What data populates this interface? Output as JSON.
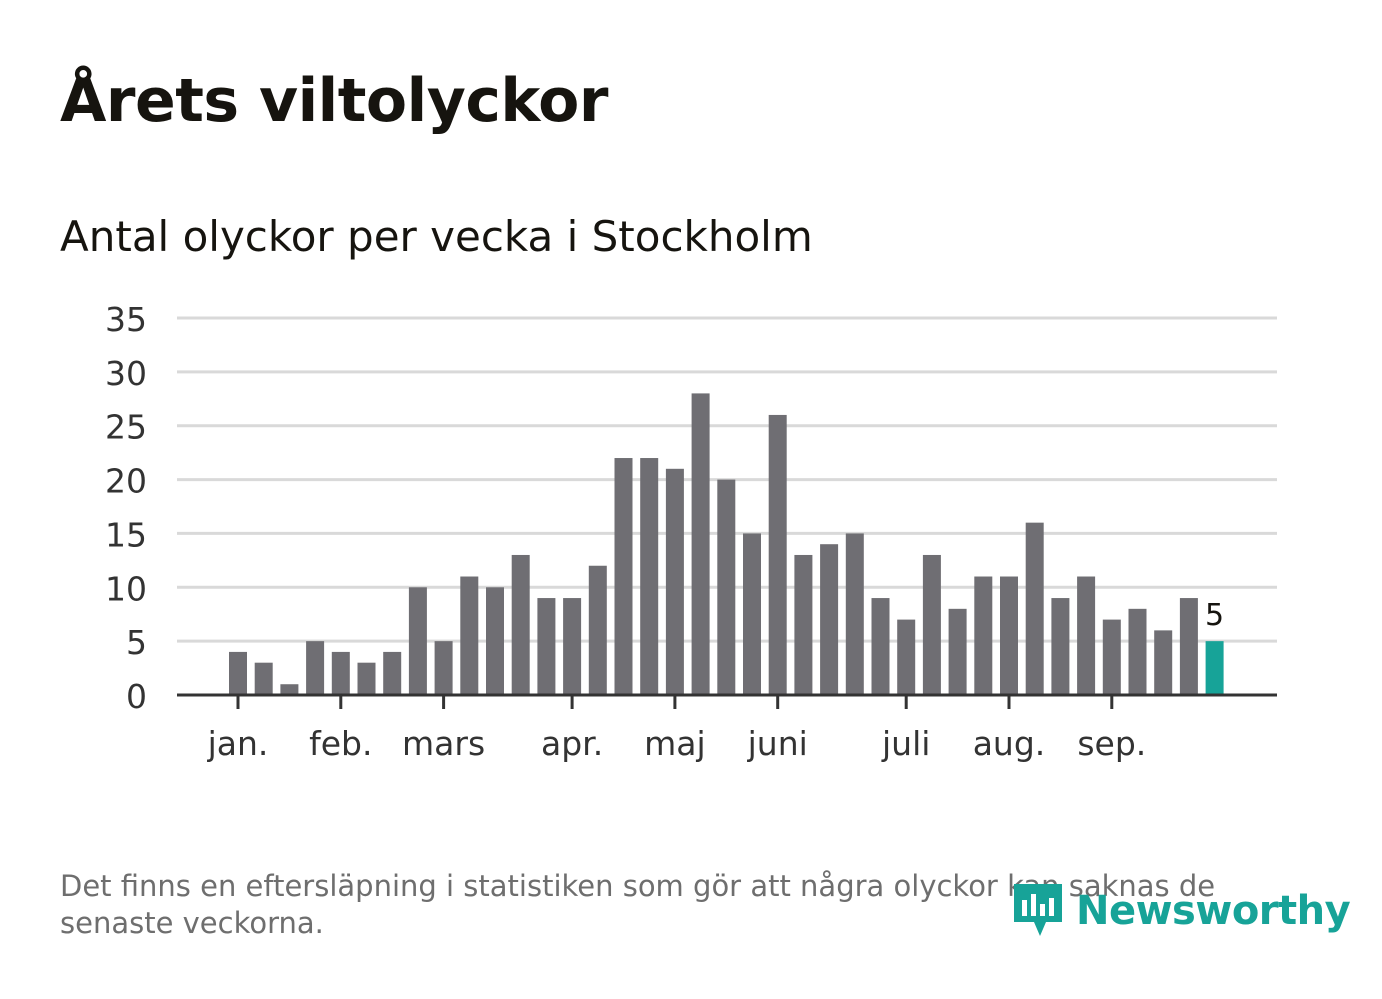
{
  "header": {
    "title": "Årets viltolyckor",
    "subtitle": "Antal olyckor per vecka i Stockholm"
  },
  "footer": {
    "note": "Det finns en eftersläpning i statistiken som gör att några olyckor kan saknas de senaste veckorna.",
    "brand": "Newsworthy",
    "brand_icon": "newsworthy-logo-icon"
  },
  "colors": {
    "bar": "#6f6e73",
    "highlight": "#17a398",
    "grid": "#d9d9d9",
    "axis": "#333333",
    "text": "#333333"
  },
  "chart_data": {
    "type": "bar",
    "title": "Antal olyckor per vecka i Stockholm",
    "xlabel": "",
    "ylabel": "",
    "ylim": [
      0,
      35
    ],
    "yticks": [
      0,
      5,
      10,
      15,
      20,
      25,
      30,
      35
    ],
    "grid": true,
    "values": [
      4,
      3,
      1,
      5,
      4,
      3,
      4,
      10,
      5,
      11,
      10,
      13,
      9,
      9,
      12,
      22,
      22,
      21,
      28,
      20,
      15,
      26,
      13,
      14,
      15,
      9,
      7,
      13,
      8,
      11,
      11,
      16,
      9,
      11,
      7,
      8,
      6,
      9,
      5
    ],
    "highlight_index": 38,
    "highlight_label": "5",
    "month_ticks": [
      {
        "label": "jan.",
        "week": 1
      },
      {
        "label": "feb.",
        "week": 5
      },
      {
        "label": "mars",
        "week": 9
      },
      {
        "label": "apr.",
        "week": 14
      },
      {
        "label": "maj",
        "week": 18
      },
      {
        "label": "juni",
        "week": 22
      },
      {
        "label": "juli",
        "week": 27
      },
      {
        "label": "aug.",
        "week": 31
      },
      {
        "label": "sep.",
        "week": 35
      }
    ]
  }
}
